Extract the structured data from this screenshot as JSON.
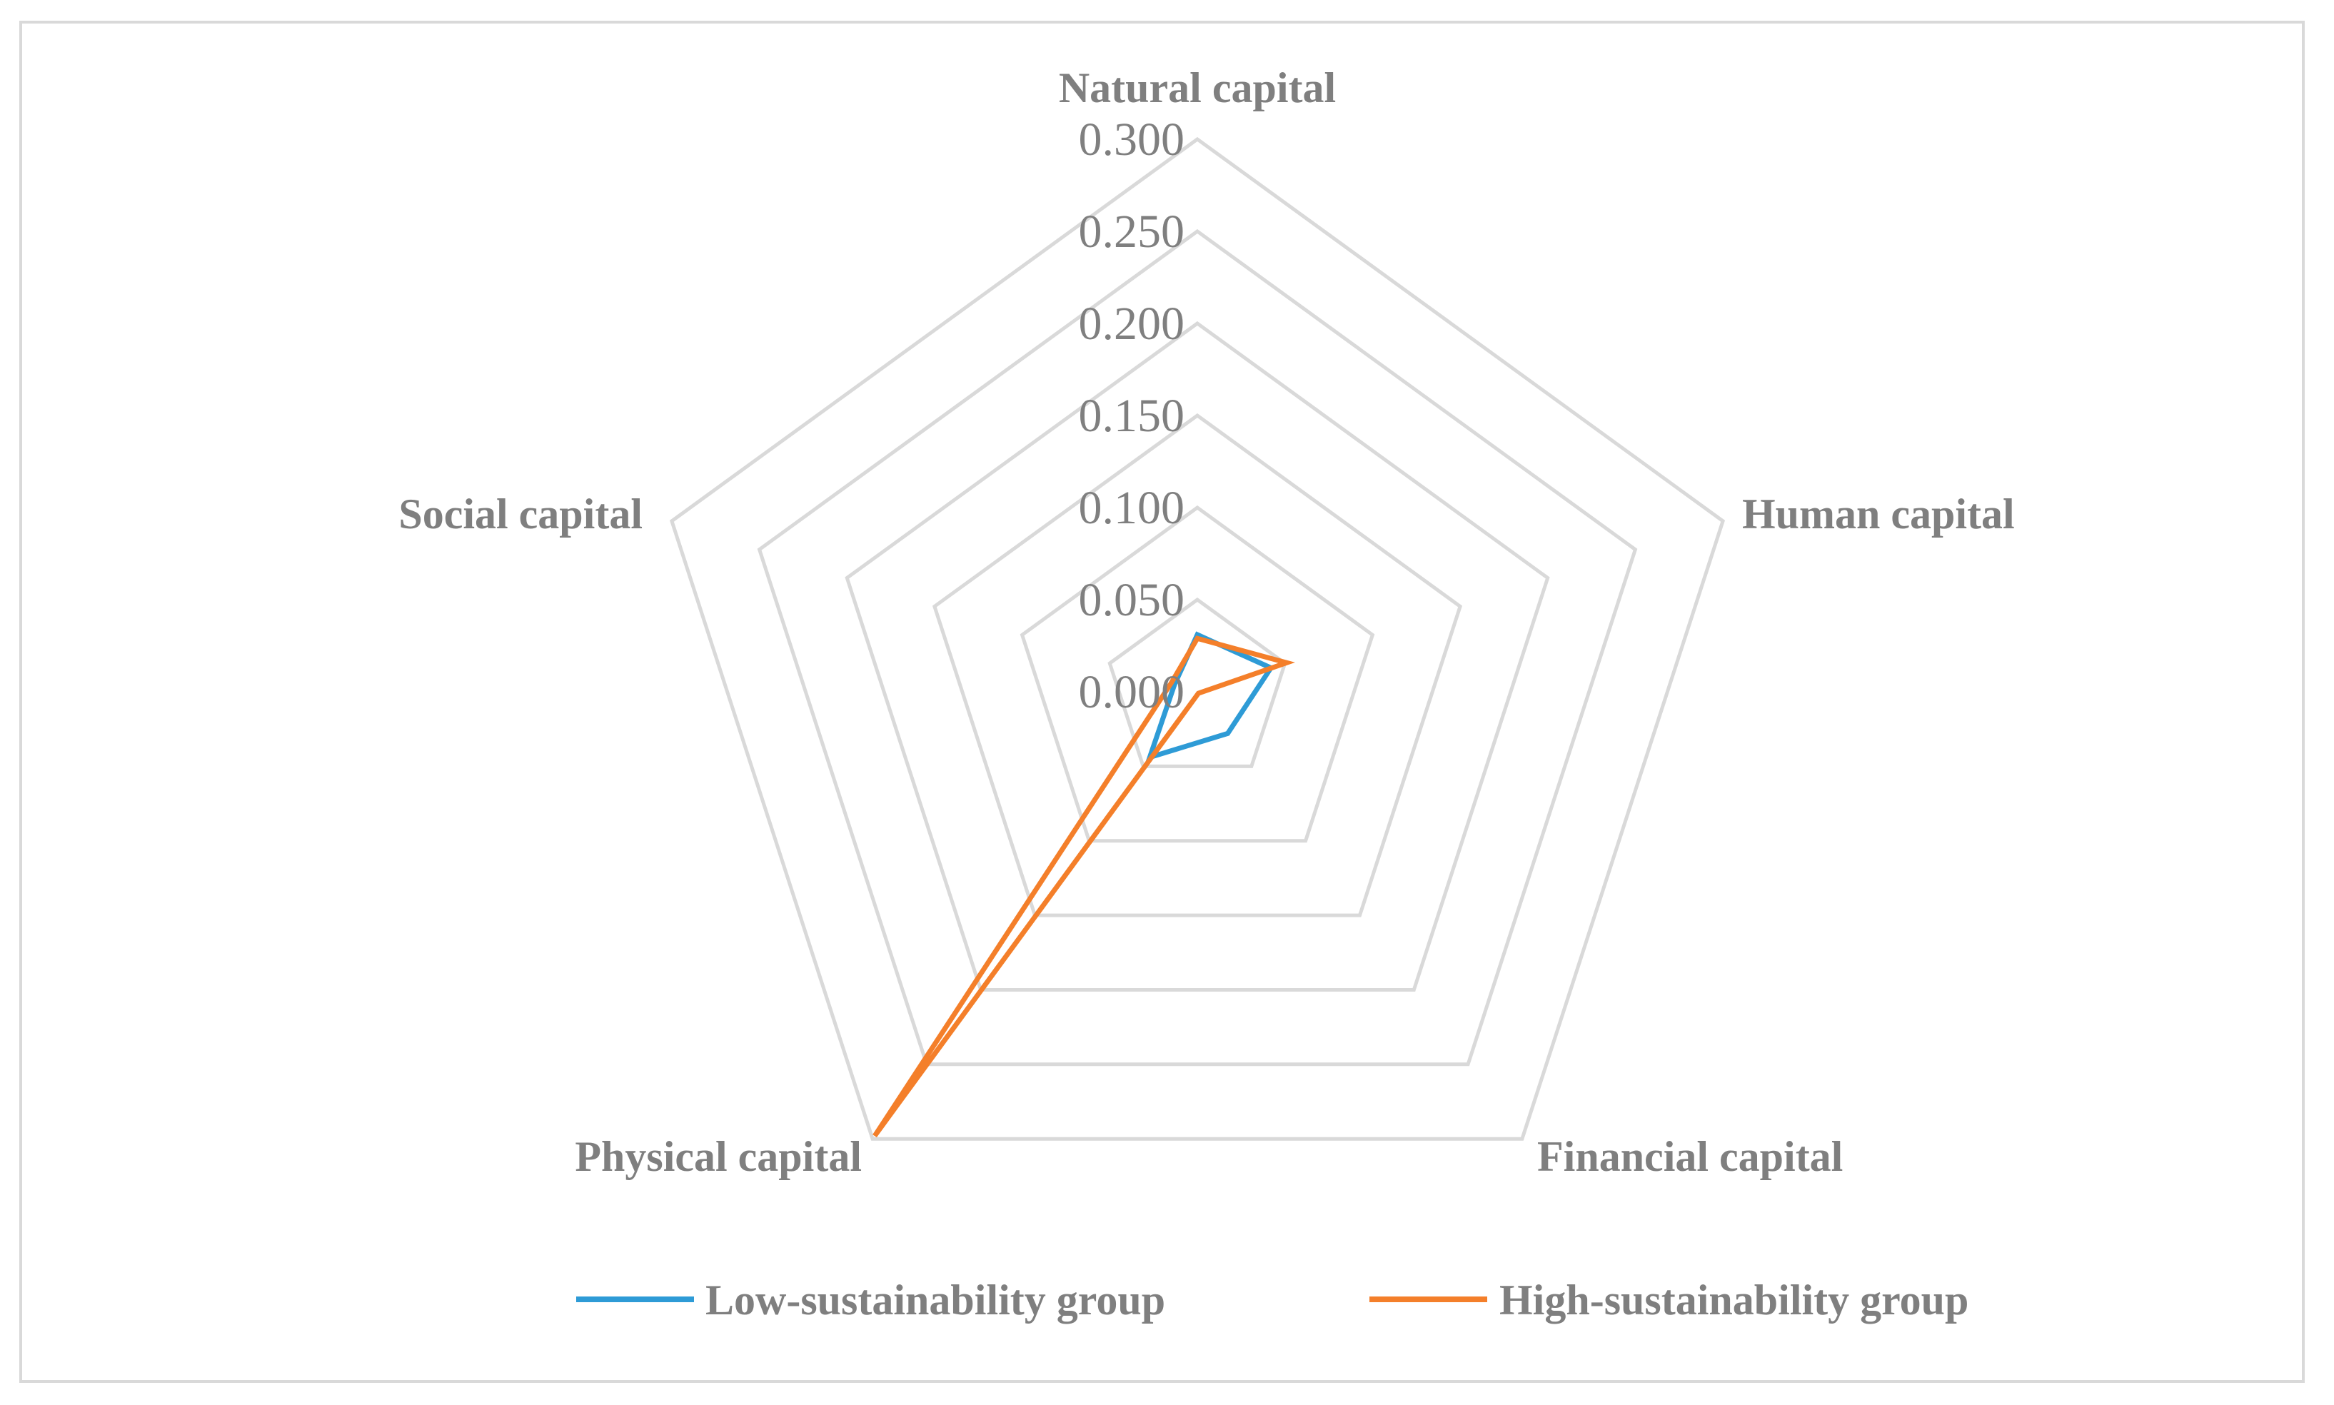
{
  "chart_data": {
    "type": "radar",
    "axes": [
      "Natural capital",
      "Human capital",
      "Financial capital",
      "Physical capital",
      "Social capital"
    ],
    "r_ticks": [
      "0.000",
      "0.050",
      "0.100",
      "0.150",
      "0.200",
      "0.250",
      "0.300"
    ],
    "r_range": [
      0,
      0.3
    ],
    "grid": true,
    "legend_position": "bottom",
    "series": [
      {
        "name": "Low-sustainability group",
        "color": "#2e9bd6",
        "values": [
          0.031,
          0.042,
          0.028,
          0.044,
          0.013
        ]
      },
      {
        "name": "High-sustainability group",
        "color": "#f47f2a",
        "values": [
          0.029,
          0.051,
          0.001,
          0.298,
          0.015
        ]
      }
    ]
  }
}
